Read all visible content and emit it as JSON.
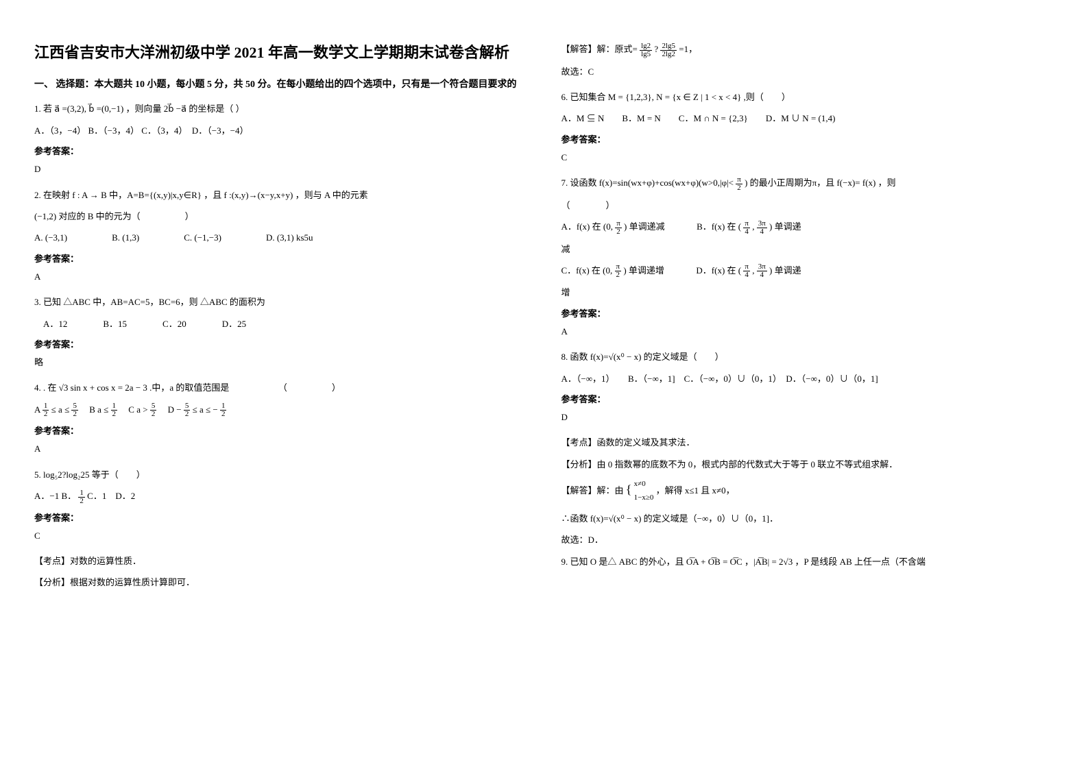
{
  "title": "江西省吉安市大洋洲初级中学 2021 年高一数学文上学期期末试卷含解析",
  "section1_header": "一、 选择题：本大题共 10 小题，每小题 5 分，共 50 分。在每小题给出的四个选项中，只有是一个符合题目要求的",
  "q1": {
    "text": "1. 若 a⃗ =(3,2), b⃗ =(0,−1) ，则向量 2b⃗ −a⃗ 的坐标是（ ）",
    "options": "A．（3，−4） B．（−3，4） C．（3，4）　D．（−3，−4）",
    "answer_label": "参考答案：",
    "answer": "D"
  },
  "q2": {
    "text_a": "2. 在映射 f : A → B 中，A=B={(x,y)|x,y∈R} ，且 f :(x,y)→(x−y,x+y) ，则与 A 中的元素",
    "text_b": "(−1,2) 对应的 B 中的元为（　　　　　）",
    "options": "A. (−3,1)　　　　　B. (1,3)　　　　　C. (−1,−3)　　　　　D. (3,1)  ks5u",
    "answer_label": "参考答案：",
    "answer": "A"
  },
  "q3": {
    "text": "3. 已知 △ABC 中，AB=AC=5，BC=6，则 △ABC 的面积为",
    "options": "　A．12　　　　B．15　　　　C．20　　　　D．25",
    "answer_label": "参考答案：",
    "answer": "略"
  },
  "q4": {
    "text": "4. . 在 √3 sin x + cos x = 2a − 3 .中，a 的取值范围是　　　　　　（　　　　　）",
    "options_prefix": "A",
    "opt_a_num": "1",
    "opt_a_den": "2",
    "opt_a_mid": "≤ a ≤",
    "opt_a_num2": "5",
    "opt_a_den2": "2",
    "opt_b": "　B",
    "opt_b_mid": "a ≤",
    "opt_b_num": "1",
    "opt_b_den": "2",
    "opt_c": "　C",
    "opt_c_mid": "a >",
    "opt_c_num": "5",
    "opt_c_den": "2",
    "opt_d": "　D",
    "opt_d_pre": "−",
    "opt_d_num": "5",
    "opt_d_den": "2",
    "opt_d_mid": "≤ a ≤ −",
    "opt_d_num2": "1",
    "opt_d_den2": "2",
    "answer_label": "参考答案：",
    "answer": "A"
  },
  "q5": {
    "text": "5. log₅2?log₂25 等于（　　）",
    "options_a": "A．−1 B．",
    "opt_b_num": "1",
    "opt_b_den": "2",
    "options_b": " C．1　D．2",
    "answer_label": "参考答案：",
    "answer": "C",
    "explain1": "【考点】对数的运算性质．",
    "explain2": "【分析】根据对数的运算性质计算即可．"
  },
  "q5_right": {
    "explain_pre": "【解答】解：原式=",
    "frac1_num": "lg2",
    "frac1_den": "lg5",
    "mid": "?",
    "frac2_num": "2lg5",
    "frac2_den": "2lg2",
    "suffix": "=1，",
    "final": "故选：C"
  },
  "q6": {
    "text": "6. 已知集合 M = {1,2,3}, N = {x ∈ Z | 1 < x < 4} ,则（　　）",
    "options": "A．M ⊆ N　　B．M = N　　C．M ∩ N = {2,3}　　D．M ∪ N = (1,4)",
    "answer_label": "参考答案：",
    "answer": "C"
  },
  "q7": {
    "text_a": "7. 设函数 f(x)=sin(wx+φ)+cos(wx+φ)(w>0,|φ|<",
    "text_b": ") 的最小正周期为π，且 f(−x)= f(x) ，则",
    "text_c": "（　　　　）",
    "pi": "π",
    "two": "2",
    "opt_a_pre": "A．f(x) 在 (0,",
    "opt_a_suf": ") 单调递减",
    "opt_b_pre": "B．f(x) 在 (",
    "opt_b_comma": ",",
    "opt_b_num1": "π",
    "opt_b_den1": "4",
    "opt_b_num2": "3π",
    "opt_b_den2": "4",
    "opt_b_suf": ") 单调递",
    "opt_b_suf2": "减",
    "opt_c_pre": "C．f(x) 在 (0,",
    "opt_c_suf": ") 单调递增",
    "opt_d_pre": "D．f(x) 在 (",
    "opt_d_suf": ") 单调递",
    "opt_d_suf2": "增",
    "answer_label": "参考答案：",
    "answer": "A"
  },
  "q8": {
    "text": "8. 函数 f(x)=√(x⁰ − x) 的定义域是（　　）",
    "options": "A．（−∞，1）　　B．（−∞，1]　C．（−∞，0）∪（0，1）　D．（−∞，0）∪（0，1]",
    "answer_label": "参考答案：",
    "answer": "D",
    "explain1": "【考点】函数的定义域及其求法．",
    "explain2": "【分析】由 0 指数幂的底数不为 0，根式内部的代数式大于等于 0 联立不等式组求解．",
    "explain3_pre": "【解答】解：由",
    "explain3_cond1": "x≠0",
    "explain3_cond2": "1−x≥0",
    "explain3_suf": "，解得 x≤1 且 x≠0，",
    "explain4": "∴函数 f(x)=√(x⁰ − x) 的定义域是（−∞，0）∪（0，1]．",
    "explain5": "故选：D．"
  },
  "q9": {
    "text": "9. 已知 O 是△ ABC 的外心，且 O͞A + O͞B = O͞C ，|A͞B| = 2√3 ，P 是线段 AB 上任一点（不含端"
  }
}
